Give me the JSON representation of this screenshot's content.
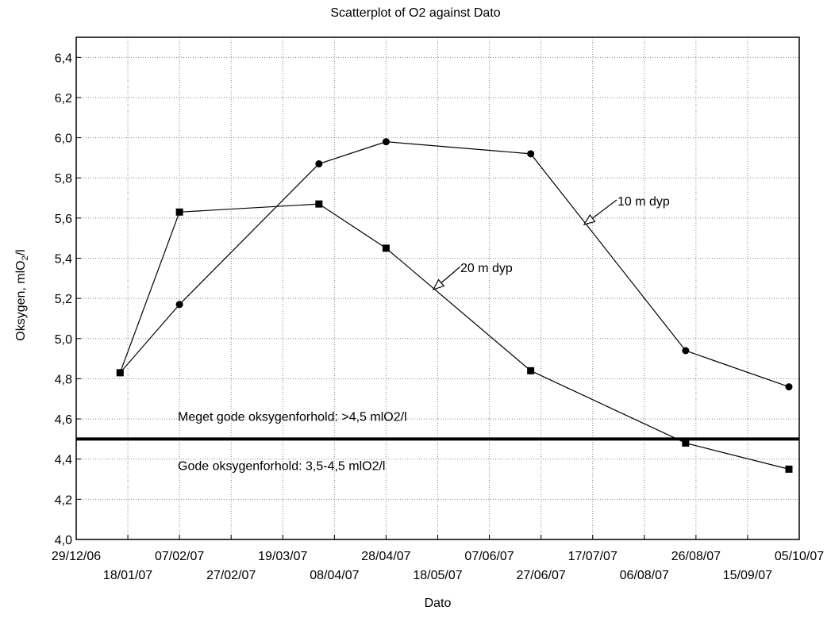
{
  "chart_data": {
    "type": "line",
    "title": "Scatterplot of O2 against Dato",
    "xlabel": "Dato",
    "ylabel": {
      "prefix": "Oksygen, mlO",
      "sub": "2",
      "suffix": "/l"
    },
    "xlim": [
      "29/12/06",
      "05/10/07"
    ],
    "ylim": [
      4.0,
      6.5
    ],
    "x_ticks": [
      "29/12/06",
      "18/01/07",
      "07/02/07",
      "27/02/07",
      "19/03/07",
      "08/04/07",
      "28/04/07",
      "18/05/07",
      "07/06/07",
      "27/06/07",
      "17/07/07",
      "06/08/07",
      "26/08/07",
      "15/09/07",
      "05/10/07"
    ],
    "y_ticks": [
      "4,0",
      "4,2",
      "4,4",
      "4,6",
      "4,8",
      "5,0",
      "5,2",
      "5,4",
      "5,6",
      "5,8",
      "6,0",
      "6,2",
      "6,4"
    ],
    "grid": true,
    "series": [
      {
        "name": "10 m dyp",
        "marker": "circle",
        "x": [
          "2007-01-15",
          "2007-02-07",
          "2007-04-02",
          "2007-04-28",
          "2007-06-23",
          "2007-08-22",
          "2007-10-01"
        ],
        "y": [
          4.83,
          5.17,
          5.87,
          5.98,
          5.92,
          4.94,
          4.76
        ]
      },
      {
        "name": "20 m dyp",
        "marker": "square",
        "x": [
          "2007-01-15",
          "2007-02-07",
          "2007-04-02",
          "2007-04-28",
          "2007-06-23",
          "2007-08-22",
          "2007-10-01"
        ],
        "y": [
          4.83,
          5.63,
          5.67,
          5.45,
          4.84,
          4.48,
          4.35
        ]
      }
    ],
    "reference_line": {
      "y": 4.5
    },
    "annotations": {
      "label_10m": "10 m dyp",
      "label_20m": "20 m dyp",
      "above_line": "Meget gode oksygenforhold: >4,5 mlO2/l",
      "below_line": "Gode oksygenforhold: 3,5-4,5 mlO2/l"
    }
  }
}
